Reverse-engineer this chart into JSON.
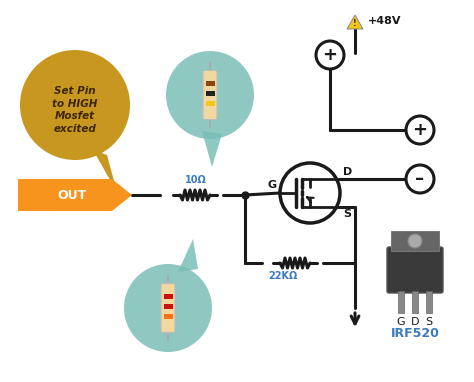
{
  "bg_color": "#ffffff",
  "line_color": "#1a1a1a",
  "line_width": 2.2,
  "orange": "#f7941d",
  "gold": "#c8971f",
  "teal": "#7bbdb7",
  "blue": "#3a7bbf",
  "label_10ohm": "10Ω",
  "label_22kohm": "22KΩ",
  "label_out": "OUT",
  "label_G": "G",
  "label_D": "D",
  "label_S": "S",
  "label_48v": "+48V",
  "label_irf": "IRF520",
  "label_G2": "G",
  "label_D2": "D",
  "label_S2": "S",
  "callout_text": "Set Pin\nto HIGH\nMosfet\nexcited",
  "fig_w": 4.74,
  "fig_h": 3.82,
  "dpi": 100
}
